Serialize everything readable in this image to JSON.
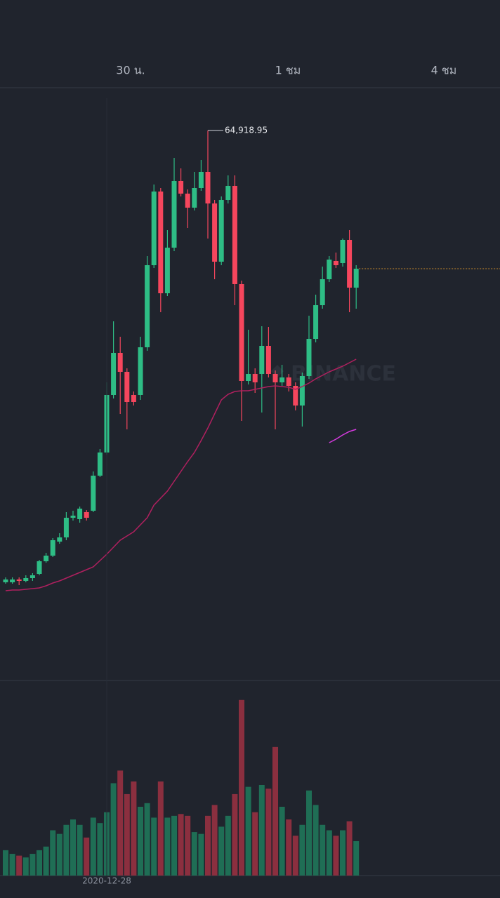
{
  "tabs": [
    "30 น.",
    "1 ชม",
    "4 ชม"
  ],
  "chart_data": [
    {
      "type": "candlestick",
      "watermark": "BINANCE",
      "up_color": "#2ebd85",
      "down_color": "#f6465d",
      "ylim": [
        49440,
        66040
      ],
      "open": [
        52040,
        52040,
        52120,
        52080,
        52160,
        52280,
        52640,
        52800,
        53200,
        53320,
        53880,
        53840,
        54040,
        54080,
        55080,
        55740,
        57380,
        58580,
        58040,
        57380,
        57380,
        58740,
        61080,
        63180,
        60280,
        61580,
        63480,
        63120,
        62720,
        63280,
        63740,
        62840,
        61180,
        62940,
        63340,
        60540,
        57780,
        57980,
        57980,
        58780,
        57980,
        57740,
        57880,
        57640,
        57080,
        57920,
        58980,
        59940,
        60680,
        61200,
        61140,
        61800,
        60440
      ],
      "high": [
        52180,
        52180,
        52180,
        52240,
        52300,
        52680,
        52880,
        53300,
        53440,
        54040,
        54080,
        54200,
        54100,
        55200,
        55840,
        57740,
        59480,
        59040,
        58140,
        57480,
        59040,
        61340,
        63380,
        63280,
        62080,
        64140,
        63840,
        63240,
        63740,
        64080,
        64918.95,
        62940,
        63040,
        63640,
        63640,
        60640,
        59240,
        58140,
        59340,
        59320,
        58080,
        58240,
        57980,
        57740,
        58020,
        59640,
        60240,
        61040,
        61340,
        61440,
        61840,
        62080,
        61080
      ],
      "low": [
        52000,
        52000,
        51960,
        52040,
        52080,
        52240,
        52600,
        52760,
        53140,
        53240,
        53800,
        53740,
        53800,
        54040,
        55040,
        55680,
        57280,
        56840,
        56400,
        57080,
        57240,
        58640,
        61000,
        59740,
        60200,
        61480,
        63040,
        62140,
        62640,
        63200,
        61840,
        60680,
        61080,
        62840,
        59940,
        56640,
        57680,
        57440,
        56880,
        57880,
        56400,
        57640,
        57480,
        56940,
        56480,
        57840,
        58880,
        59840,
        60600,
        61000,
        61040,
        59740,
        59840
      ],
      "close": [
        52120,
        52120,
        52080,
        52160,
        52240,
        52640,
        52800,
        53240,
        53320,
        53880,
        53940,
        54140,
        53880,
        55080,
        55740,
        57380,
        58580,
        58040,
        57180,
        57180,
        58740,
        61080,
        63180,
        60280,
        61580,
        63480,
        63120,
        62720,
        63280,
        63740,
        62840,
        61180,
        62940,
        63340,
        60540,
        57780,
        57980,
        57740,
        58780,
        57980,
        57740,
        57880,
        57640,
        57080,
        57920,
        58980,
        59940,
        60680,
        61240,
        61080,
        61800,
        60440,
        60980
      ],
      "high_value_labels": [
        null,
        null,
        null,
        null,
        null,
        null,
        null,
        null,
        null,
        null,
        null,
        null,
        null,
        null,
        null,
        null,
        null,
        null,
        null,
        null,
        null,
        null,
        null,
        null,
        null,
        null,
        null,
        null,
        null,
        null,
        "64,918.95",
        null,
        null,
        null,
        null,
        null,
        null,
        null,
        null,
        null,
        null,
        null,
        null,
        null,
        null,
        null,
        null,
        null,
        null,
        null,
        null,
        null,
        null
      ],
      "lines": [
        {
          "color": "#b0205f",
          "values": [
            51800,
            51820,
            51820,
            51840,
            51860,
            51880,
            51940,
            52020,
            52080,
            52160,
            52240,
            52320,
            52400,
            52480,
            52660,
            52840,
            53040,
            53240,
            53360,
            53480,
            53680,
            53880,
            54240,
            54440,
            54640,
            54920,
            55200,
            55480,
            55740,
            56080,
            56440,
            56840,
            57240,
            57400,
            57480,
            57500,
            57500,
            57540,
            57580,
            57620,
            57640,
            57620,
            57600,
            57540,
            57620,
            57720,
            57840,
            57940,
            58040,
            58120,
            58200,
            58300,
            58400
          ]
        },
        {
          "color": "#d63adf",
          "values": [
            null,
            null,
            null,
            null,
            null,
            null,
            null,
            null,
            null,
            null,
            null,
            null,
            null,
            null,
            null,
            null,
            null,
            null,
            null,
            null,
            null,
            null,
            null,
            null,
            null,
            null,
            null,
            null,
            null,
            null,
            null,
            null,
            null,
            null,
            null,
            null,
            null,
            null,
            null,
            null,
            null,
            null,
            null,
            null,
            null,
            null,
            null,
            null,
            56020,
            56120,
            56240,
            56340,
            56400
          ]
        }
      ]
    },
    {
      "type": "bar",
      "up_color": "#1f6e55",
      "down_color": "#8b2f3f",
      "ylim": [
        0,
        100
      ],
      "categories": [
        null,
        null,
        null,
        null,
        null,
        null,
        null,
        null,
        null,
        null,
        null,
        null,
        null,
        null,
        null,
        "2020-12-28",
        null,
        null,
        null,
        null,
        null,
        null,
        null,
        null,
        null,
        null,
        null,
        null,
        null,
        null,
        null,
        null,
        null,
        null,
        null,
        null,
        null,
        null,
        null,
        null,
        null,
        null,
        null,
        null,
        null,
        null,
        null,
        null,
        null,
        null,
        null,
        null,
        null
      ],
      "values": [
        14,
        12,
        11,
        10,
        12,
        14,
        16,
        25,
        23,
        28,
        31,
        28,
        21,
        32,
        29,
        35,
        51,
        58,
        45,
        52,
        38,
        40,
        32,
        52,
        32,
        33,
        34,
        33,
        24,
        23,
        33,
        39,
        27,
        33,
        45,
        97,
        49,
        35,
        50,
        48,
        71,
        38,
        31,
        22,
        28,
        47,
        39,
        28,
        25,
        22,
        25,
        30,
        19
      ]
    }
  ]
}
